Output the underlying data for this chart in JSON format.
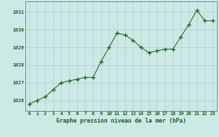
{
  "x": [
    0,
    1,
    2,
    3,
    4,
    5,
    6,
    7,
    8,
    9,
    10,
    11,
    12,
    13,
    14,
    15,
    16,
    17,
    18,
    19,
    20,
    21,
    22,
    23
  ],
  "y": [
    1025.8,
    1026.0,
    1026.2,
    1026.6,
    1027.0,
    1027.1,
    1027.2,
    1027.3,
    1027.3,
    1028.2,
    1029.0,
    1029.8,
    1029.7,
    1029.4,
    1029.0,
    1028.7,
    1028.8,
    1028.9,
    1028.9,
    1029.6,
    1030.3,
    1031.1,
    1030.5,
    1030.5
  ],
  "line_color": "#1a6b1a",
  "marker_color": "#1a6b1a",
  "bg_color": "#cce9e6",
  "grid_color": "#aacfcc",
  "xlabel": "Graphe pression niveau de la mer (hPa)",
  "xlabel_color": "#1a5c1a",
  "tick_color": "#1a5c1a",
  "ylim_min": 1025.4,
  "ylim_max": 1031.6,
  "yticks": [
    1026,
    1027,
    1028,
    1029,
    1030,
    1031
  ],
  "xticks": [
    0,
    1,
    2,
    3,
    4,
    5,
    6,
    7,
    8,
    9,
    10,
    11,
    12,
    13,
    14,
    15,
    16,
    17,
    18,
    19,
    20,
    21,
    22,
    23
  ]
}
